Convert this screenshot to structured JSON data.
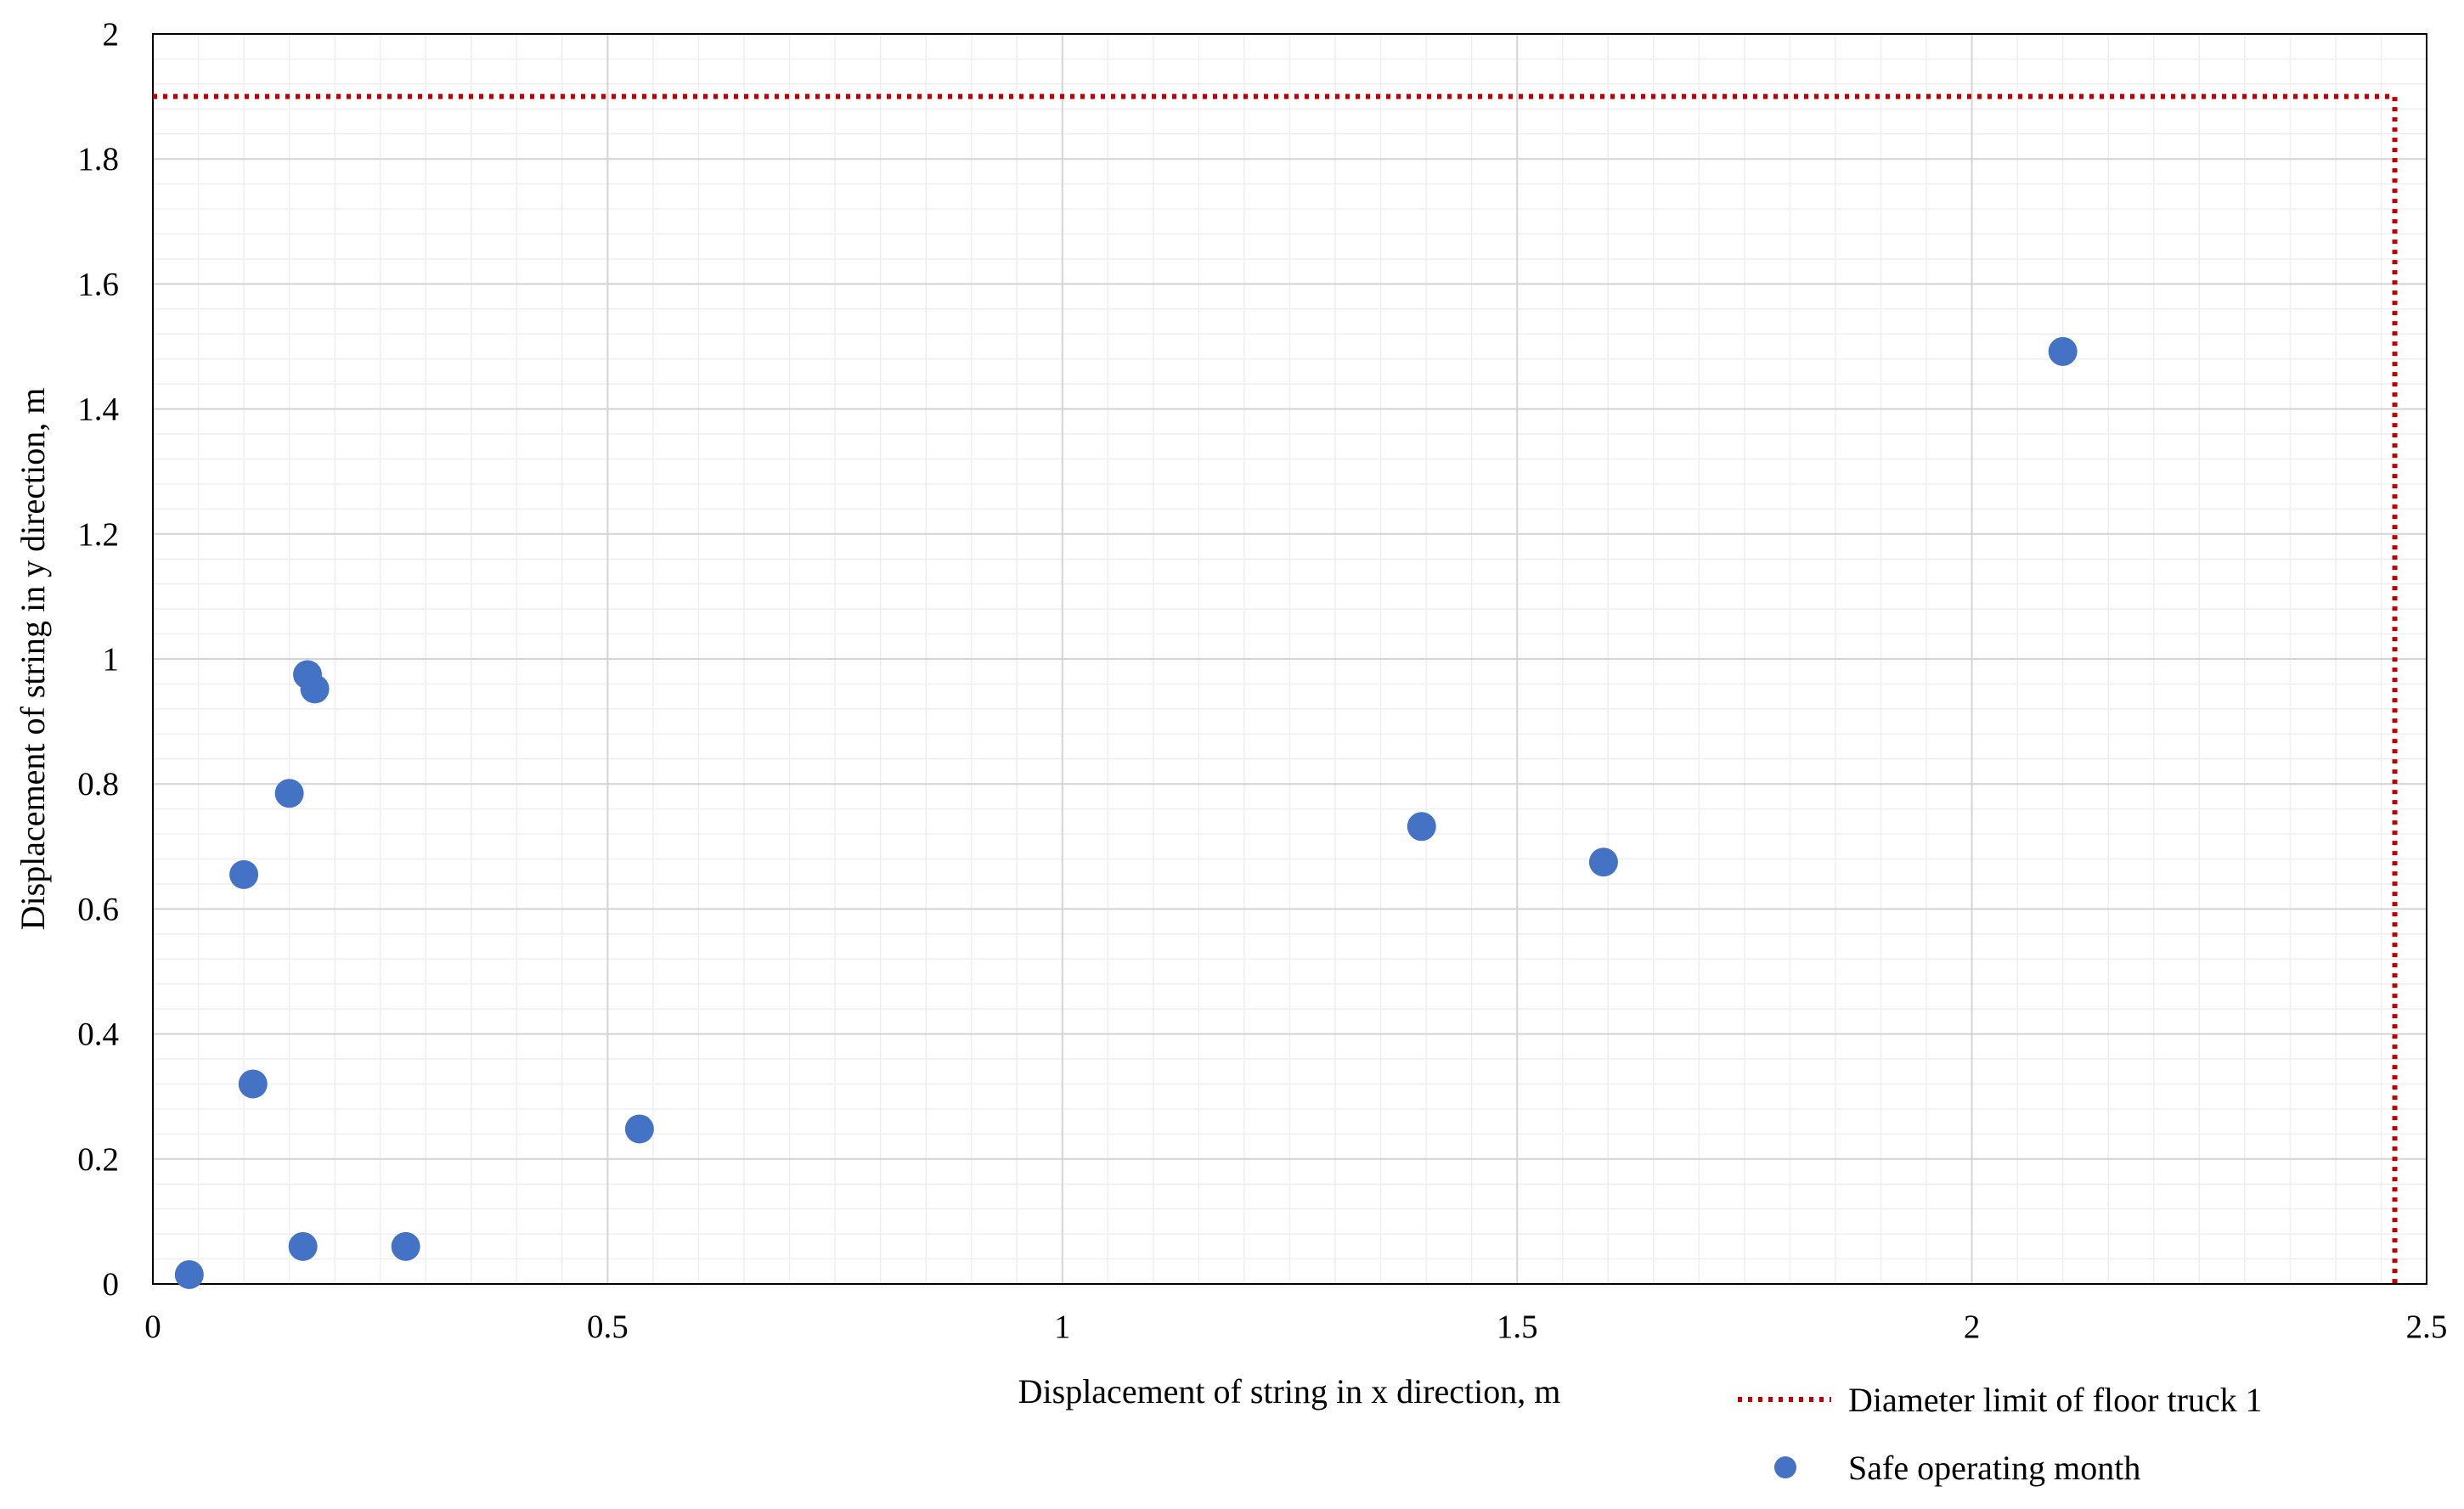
{
  "chart_data": {
    "type": "scatter",
    "title": "",
    "xlabel": "Displacement of string in x direction, m",
    "ylabel": "Displacement of string in y direction, m",
    "xlim": [
      0,
      2.5
    ],
    "ylim": [
      0,
      2
    ],
    "x_ticks": [
      0,
      0.5,
      1,
      1.5,
      2,
      2.5
    ],
    "y_ticks": [
      0,
      0.2,
      0.4,
      0.6,
      0.8,
      1,
      1.2,
      1.4,
      1.6,
      1.8,
      2
    ],
    "x_tick_labels": [
      "0",
      "0.5",
      "1",
      "1.5",
      "2",
      "2.5"
    ],
    "y_tick_labels": [
      "0",
      "0.2",
      "0.4",
      "0.6",
      "0.8",
      "1",
      "1.2",
      "1.4",
      "1.6",
      "1.8",
      "2"
    ],
    "grid": true,
    "minor_grid": true,
    "legend_position": "bottom-right, below plot",
    "series": [
      {
        "name": "Safe operating month",
        "kind": "scatter",
        "color": "#4472C4",
        "points": [
          {
            "x": 0.04,
            "y": 0.015
          },
          {
            "x": 0.1,
            "y": 0.655
          },
          {
            "x": 0.11,
            "y": 0.32
          },
          {
            "x": 0.15,
            "y": 0.785
          },
          {
            "x": 0.165,
            "y": 0.06
          },
          {
            "x": 0.17,
            "y": 0.975
          },
          {
            "x": 0.178,
            "y": 0.952
          },
          {
            "x": 0.278,
            "y": 0.06
          },
          {
            "x": 0.535,
            "y": 0.248
          },
          {
            "x": 1.395,
            "y": 0.732
          },
          {
            "x": 1.595,
            "y": 0.675
          },
          {
            "x": 2.1,
            "y": 1.492
          }
        ]
      },
      {
        "name": "Diameter limit of floor truck 1",
        "kind": "line",
        "style": "dotted",
        "color": "#C00000",
        "points": [
          {
            "x": 0,
            "y": 1.9
          },
          {
            "x": 2.465,
            "y": 1.9
          },
          {
            "x": 2.465,
            "y": 0
          }
        ]
      }
    ],
    "legend": [
      {
        "label": "Diameter limit of floor truck 1",
        "marker": "dotted-line"
      },
      {
        "label": "Safe operating month",
        "marker": "circle"
      }
    ]
  }
}
